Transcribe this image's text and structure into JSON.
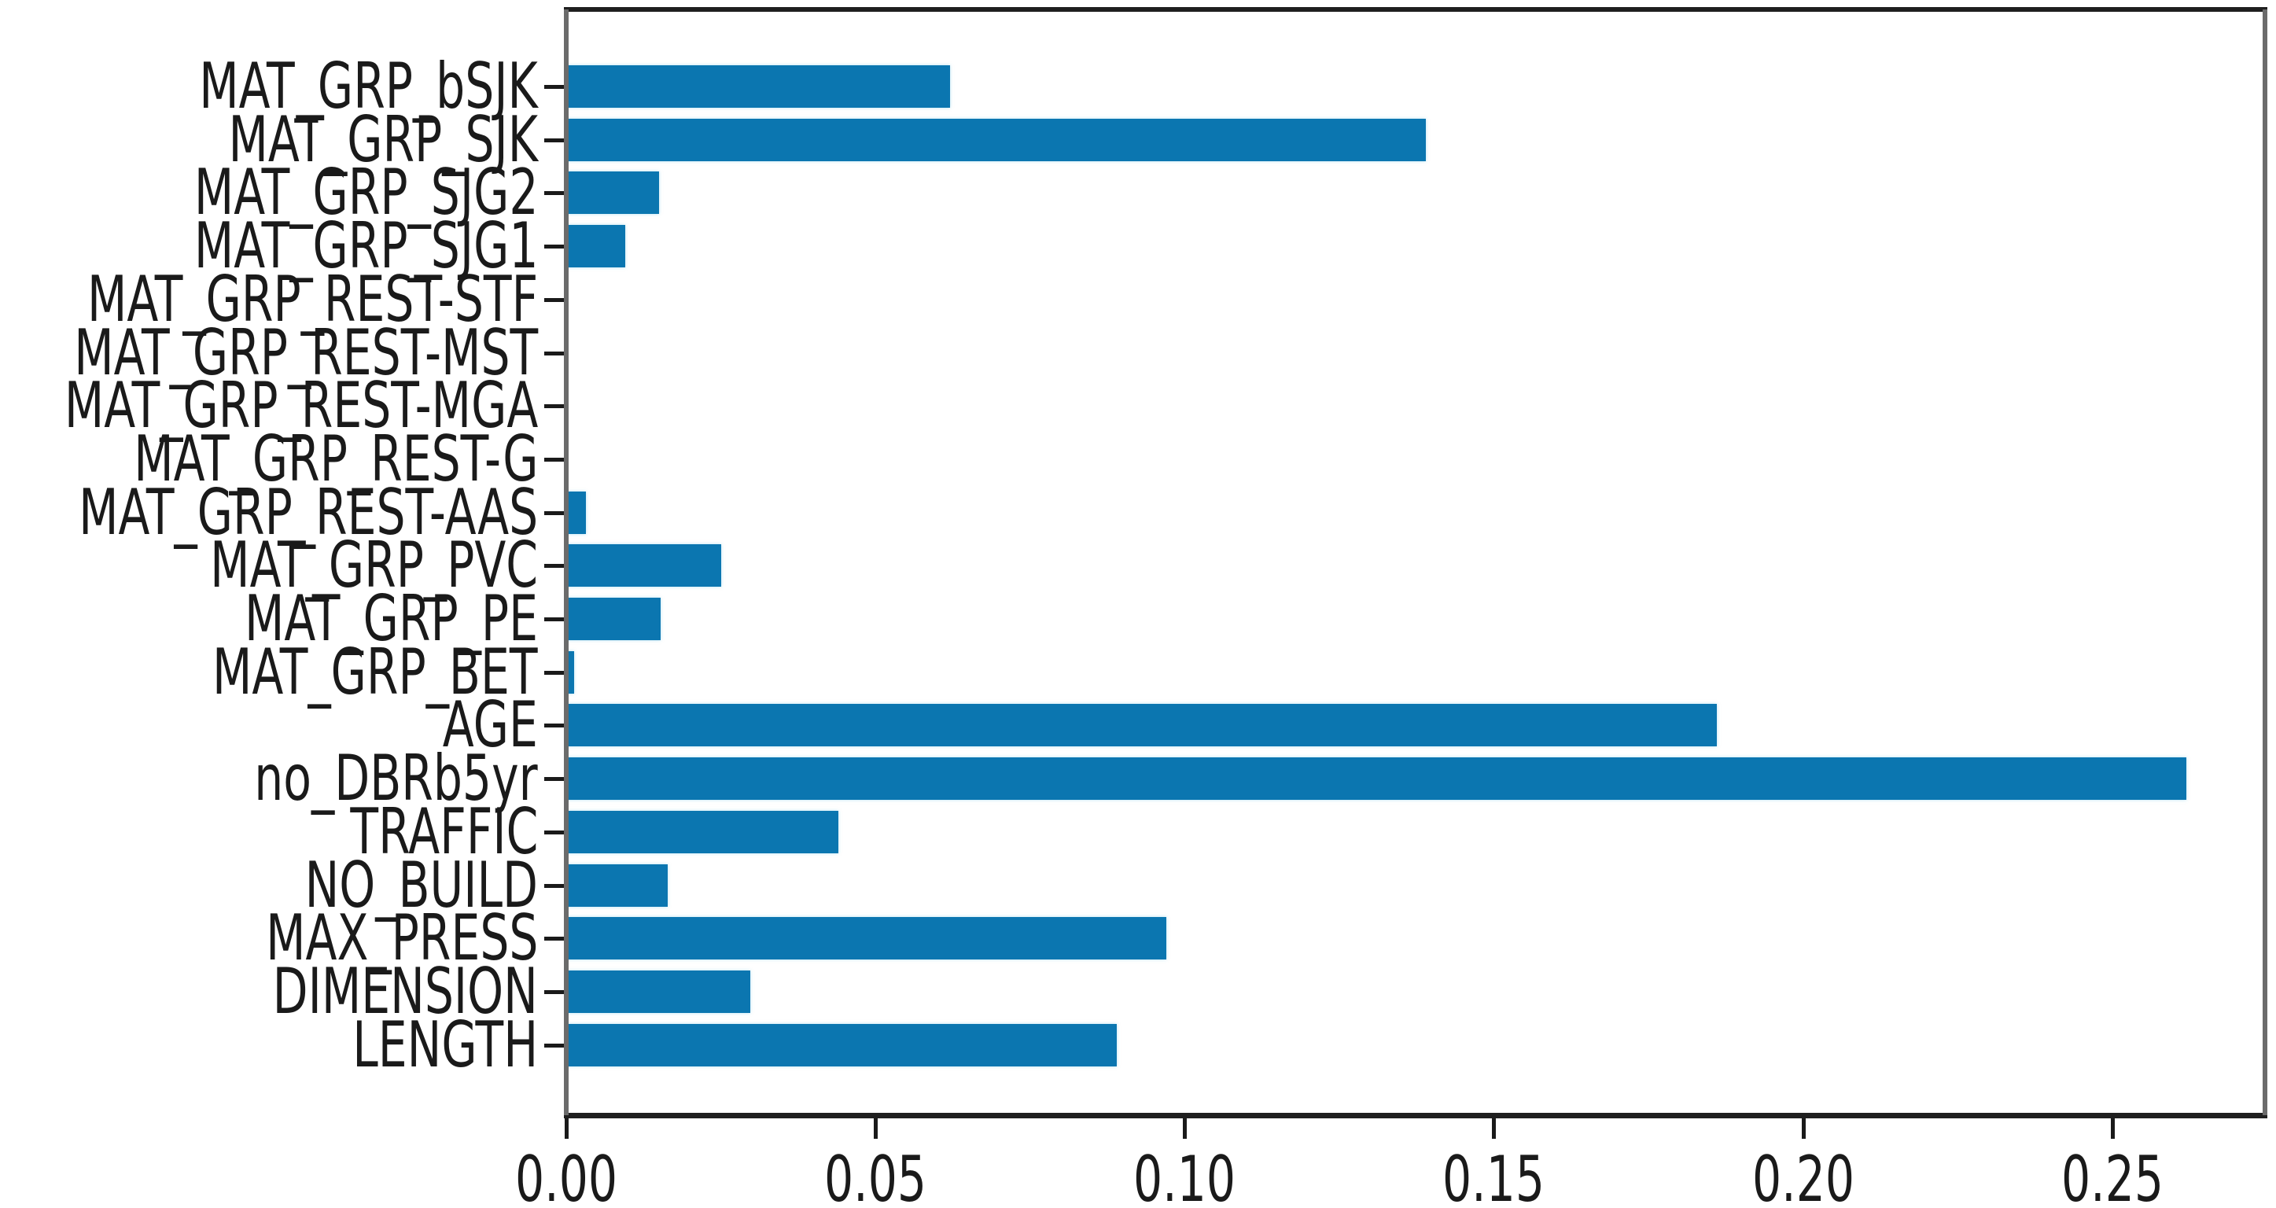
{
  "figure": {
    "background_color": "#ffffff",
    "text_color": "#1a1a1a",
    "title": ""
  },
  "chart_data": {
    "type": "bar",
    "orientation": "horizontal",
    "title": "",
    "xlabel": "",
    "ylabel": "",
    "grid": false,
    "legend": null,
    "bar_color": "#0b76b0",
    "categories": [
      "MAT_GRP_bSJK",
      "MAT_GRP_SJK",
      "MAT_GRP_SJG2",
      "MAT_GRP_SJG1",
      "MAT_GRP_REST-STF",
      "MAT_GRP_REST-MST",
      "MAT_GRP_REST-MGA",
      "MAT_GRP_REST-G",
      "MAT_GRP_REST-AAS",
      "MAT_GRP_PVC",
      "MAT_GRP_PE",
      "MAT_GRP_BET",
      "AGE",
      "no_DBRb5yr",
      "TRAFFIC",
      "NO_BUILD",
      "MAX_PRESS",
      "DIMENSION",
      "LENGTH"
    ],
    "values": [
      0.062,
      0.139,
      0.015,
      0.0095,
      0.0,
      0.0,
      0.0,
      0.0,
      0.0032,
      0.025,
      0.0153,
      0.0013,
      0.186,
      0.262,
      0.044,
      0.0164,
      0.097,
      0.0297,
      0.089
    ],
    "xlim": [
      0,
      0.2747
    ],
    "x_ticks": [
      0.0,
      0.05,
      0.1,
      0.15,
      0.2,
      0.25
    ],
    "x_tick_labels": [
      "0.00",
      "0.05",
      "0.10",
      "0.15",
      "0.20",
      "0.25"
    ]
  }
}
